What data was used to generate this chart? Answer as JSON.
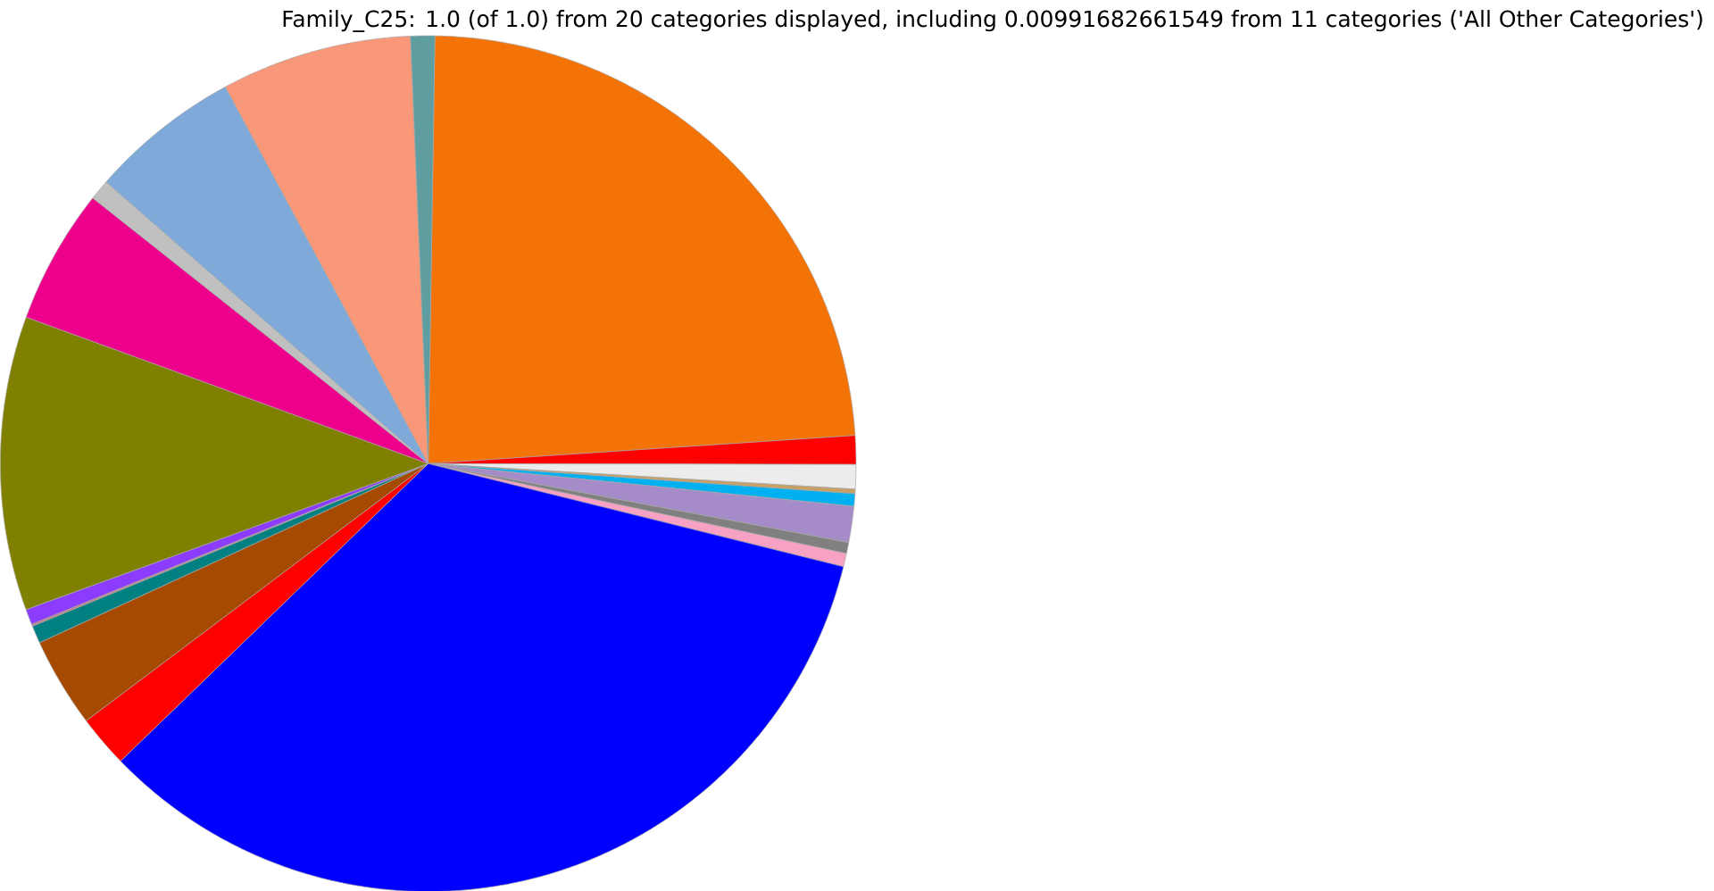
{
  "chart_data": {
    "type": "pie",
    "title": "Family_C25: 1.0 (of 1.0) from 20 categories displayed, including 0.00991682661549 from 11 categories ('All Other Categories')",
    "categories": [
      null,
      null,
      null,
      null,
      null,
      null,
      null,
      null,
      null,
      null,
      null,
      null,
      null,
      null,
      null,
      null,
      null,
      null,
      null,
      null
    ],
    "values": [
      23.7,
      1.08,
      0.92,
      0.17,
      0.47,
      1.36,
      0.42,
      0.5,
      33.9,
      1.97,
      3.39,
      0.67,
      0.08,
      0.58,
      11.1,
      5.1,
      0.78,
      5.7,
      7.2,
      0.91
    ],
    "colors": [
      "#f37306",
      "#ff0000",
      "#ececec",
      "#c8a064",
      "#00b0f0",
      "#a58cc8",
      "#808080",
      "#f7a1c4",
      "#0000ff",
      "#ff0000",
      "#a54a00",
      "#008080",
      "#c08080",
      "#8c3cff",
      "#808000",
      "#ec008c",
      "#c0c0c0",
      "#7ea9d8",
      "#f89879",
      "#5f9ea0"
    ]
  }
}
